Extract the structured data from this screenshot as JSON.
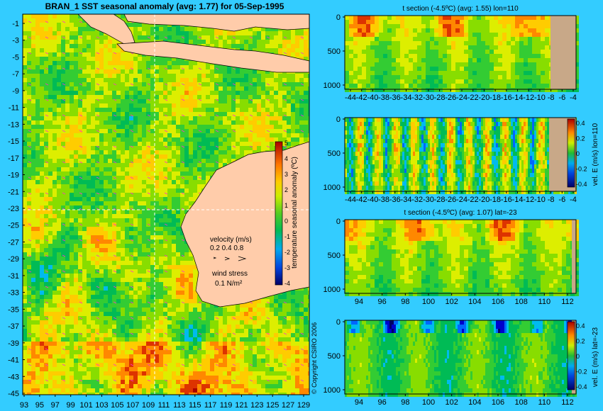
{
  "colors": {
    "background": "#33ccff",
    "land": "#ffccaa",
    "land_dark": "#c8a888",
    "scale": [
      "#000066",
      "#0000cc",
      "#0066ff",
      "#00bbee",
      "#00bb55",
      "#33cc33",
      "#88dd00",
      "#ddee00",
      "#ffcc00",
      "#ff8800",
      "#dd3300",
      "#aa0000"
    ]
  },
  "map": {
    "title": "BRAN_1  SST seasonal anomaly  (avg: 1.77)  for 05-Sep-1995",
    "lat_ticks": [
      "-1",
      "-3",
      "-5",
      "-7",
      "-9",
      "-11",
      "-13",
      "-15",
      "-17",
      "-19",
      "-21",
      "-23",
      "-25",
      "-27",
      "-29",
      "-31",
      "-33",
      "-35",
      "-37",
      "-39",
      "-41",
      "-43",
      "-45"
    ],
    "lon_ticks": [
      "93",
      "95",
      "97",
      "99",
      "101",
      "103",
      "105",
      "107",
      "109",
      "111",
      "113",
      "115",
      "117",
      "119",
      "121",
      "123",
      "125",
      "127",
      "129"
    ],
    "colorbar_label": "temperature seasonal anomaly (ºC)",
    "colorbar_ticks": [
      "5",
      "4",
      "3",
      "2",
      "1",
      "0",
      "-1",
      "-2",
      "-3",
      "-4"
    ],
    "velocity_label": "velocity (m/s)",
    "velocity_scale": "0.2 0.4 0.8",
    "wind_label": "wind stress",
    "wind_scale": "0.1 N/m²",
    "copyright": "© Copyright CSIRO 2006"
  },
  "panels": [
    {
      "title": "t section (-4.5ºC)  (avg: 1.55) lon=110",
      "y_ticks": [
        "0",
        "500",
        "1000"
      ],
      "x_ticks": [
        "-44",
        "-42",
        "-40",
        "-38",
        "-36",
        "-34",
        "-32",
        "-30",
        "-28",
        "-26",
        "-24",
        "-22",
        "-20",
        "-18",
        "-16",
        "-14",
        "-12",
        "-10",
        "-8",
        "-6",
        "-4"
      ],
      "colorbar_label": "",
      "colorbar_ticks": []
    },
    {
      "title": "",
      "y_ticks": [
        "0",
        "500",
        "1000"
      ],
      "x_ticks": [
        "-44",
        "-42",
        "-40",
        "-38",
        "-36",
        "-34",
        "-32",
        "-30",
        "-28",
        "-26",
        "-24",
        "-22",
        "-20",
        "-18",
        "-16",
        "-14",
        "-12",
        "-10",
        "-8",
        "-6",
        "-4"
      ],
      "colorbar_label": "vel. E (m/s) lon=110",
      "colorbar_ticks": [
        "0.4",
        "0.2",
        "0",
        "-0.2",
        "-0.4"
      ]
    },
    {
      "title": "t section (-4.5ºC)  (avg: 1.07) lat=-23",
      "y_ticks": [
        "0",
        "500",
        "1000"
      ],
      "x_ticks": [
        "94",
        "96",
        "98",
        "100",
        "102",
        "104",
        "106",
        "108",
        "110",
        "112"
      ],
      "colorbar_label": "",
      "colorbar_ticks": []
    },
    {
      "title": "",
      "y_ticks": [
        "0",
        "500",
        "1000"
      ],
      "x_ticks": [
        "94",
        "96",
        "98",
        "100",
        "102",
        "104",
        "106",
        "108",
        "110",
        "112"
      ],
      "colorbar_label": "vel. E (m/s) lat=-23",
      "colorbar_ticks": [
        "0.4",
        "0.2",
        "0",
        "-0.2",
        "-0.4"
      ]
    }
  ],
  "chart_data": [
    {
      "type": "heatmap",
      "title": "BRAN_1  SST seasonal anomaly  (avg: 1.77)  for 05-Sep-1995",
      "x_range": [
        93,
        130
      ],
      "y_range": [
        -45,
        0
      ],
      "colorbar_range": [
        -4,
        5
      ],
      "colorbar_label": "temperature seasonal anomaly (ºC)"
    },
    {
      "type": "heatmap",
      "title": "t section (-4.5ºC)  (avg: 1.55) lon=110",
      "x_range": [
        -45,
        -3
      ],
      "y_range": [
        1050,
        0
      ]
    },
    {
      "type": "heatmap",
      "x_range": [
        -45,
        -3
      ],
      "y_range": [
        1050,
        0
      ],
      "colorbar_range": [
        -0.4,
        0.4
      ],
      "colorbar_label": "vel. E (m/s) lon=110"
    },
    {
      "type": "heatmap",
      "title": "t section (-4.5ºC)  (avg: 1.07) lat=-23",
      "x_range": [
        93,
        114
      ],
      "y_range": [
        1050,
        0
      ]
    },
    {
      "type": "heatmap",
      "x_range": [
        93,
        114
      ],
      "y_range": [
        1050,
        0
      ],
      "colorbar_range": [
        -0.4,
        0.4
      ],
      "colorbar_label": "vel. E (m/s) lat=-23"
    }
  ]
}
